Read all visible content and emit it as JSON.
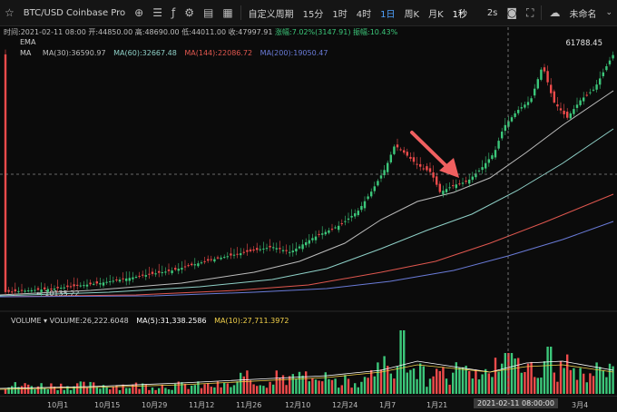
{
  "toolbar": {
    "symbol": "BTC/USD Coinbase Pro",
    "custom_period": "自定义周期",
    "intervals": [
      "15分",
      "1时",
      "4时",
      "1日",
      "周K",
      "月K",
      "1秒"
    ],
    "active_interval": "1日",
    "bar_replay": "2s",
    "account": "未命名"
  },
  "info": {
    "time_label": "时间:2021-02-11 08:00",
    "open": "开:44850.00",
    "high": "高:48690.00",
    "low": "低:44011.00",
    "close": "收:47997.91",
    "change": "涨幅:7.02%(3147.91)",
    "amplitude": "振幅:10.43%"
  },
  "indicators": {
    "ema_label": "EMA",
    "ma_label": "MA",
    "ma30": "MA(30):36590.97",
    "ma60": "MA(60):32667.48",
    "ma144": "MA(144):22086.72",
    "ma200": "MA(200):19050.47"
  },
  "price": {
    "top": "61788.45",
    "low_marker": "← 10135.22"
  },
  "volume": {
    "label": "VOLUME",
    "value": "VOLUME:26,222.6048",
    "ma5": "MA(5):31,338.2586",
    "ma10": "MA(10):27,711.3972"
  },
  "dates": [
    "10月1",
    "10月15",
    "10月29",
    "11月12",
    "11月26",
    "12月10",
    "12月24",
    "1月7",
    "1月21",
    "2021-02-11 08:00:00",
    "3月4"
  ],
  "colors": {
    "up": "#3cc77a",
    "down": "#ef4b4b",
    "ma30": "#bdbdbd",
    "ma60": "#8fd1c8",
    "ma144": "#e0574f",
    "ma200": "#6a7bd8",
    "arrow": "#f06060"
  }
}
